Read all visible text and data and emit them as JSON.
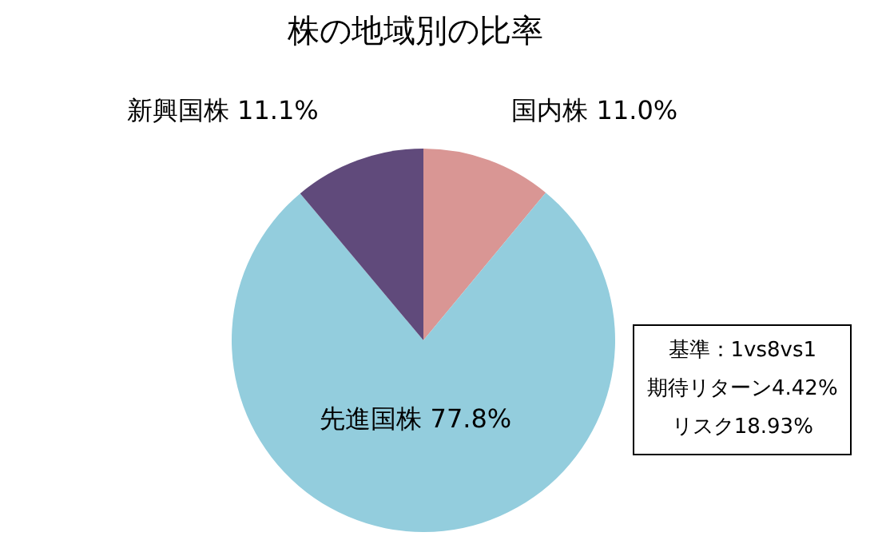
{
  "chart_data": {
    "type": "pie",
    "title": "株の地域別の比率",
    "categories": [
      "国内株",
      "先進国株",
      "新興国株"
    ],
    "values": [
      11.0,
      77.8,
      11.1
    ],
    "value_labels": [
      "11.0%",
      "77.8%",
      "11.1%"
    ],
    "colors": [
      "#d99694",
      "#93cddd",
      "#604a7b"
    ],
    "annotations": [
      "基準：1vs8vs1",
      "期待リターン4.42%",
      "リスク18.93%"
    ],
    "legend": false
  }
}
